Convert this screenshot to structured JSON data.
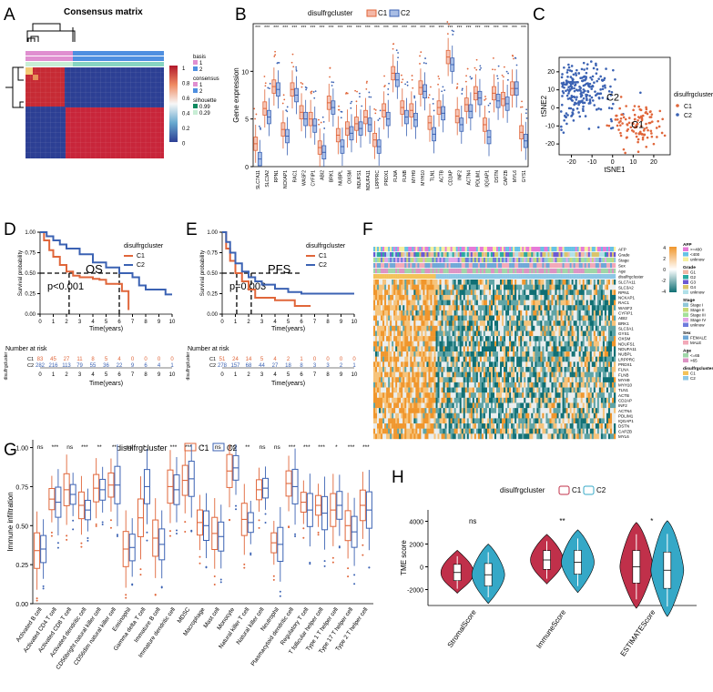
{
  "colors": {
    "c1": "#e0663a",
    "c2": "#3b62b3",
    "h1": "#c0304a",
    "h2": "#35a8c7",
    "orange": "#f0962c",
    "teal": "#0f6f74"
  },
  "panel_letters": [
    "A",
    "B",
    "C",
    "D",
    "E",
    "F",
    "G",
    "H"
  ],
  "panelA": {
    "title": "Consensus matrix",
    "legend": {
      "scale_ticks": [
        "1",
        "0.8",
        "0.6",
        "0.4",
        "0.2",
        "0"
      ],
      "basis_title": "basis",
      "basis_items": [
        "1",
        "2"
      ],
      "consensus_title": "consensus",
      "consensus_items": [
        "1",
        "2"
      ],
      "silhouette_title": "silhouette",
      "silhouette_items": [
        "0.99",
        "0.29"
      ]
    }
  },
  "shared": {
    "legend_title": "disulfrgcluster",
    "c1": "C1",
    "c2": "C2",
    "sig": "***"
  },
  "chart_data": [
    {
      "panel": "B",
      "type": "box",
      "ylabel": "Gene expression",
      "ylim": [
        0,
        15
      ],
      "yticks": [
        "0",
        "5",
        "10"
      ],
      "legend": "disulfrgcluster",
      "series": [
        {
          "name": "C1"
        },
        {
          "name": "C2"
        }
      ],
      "categories": [
        "SLC7A11",
        "SLC3A2",
        "RPN1",
        "NCKAP1",
        "RAC1",
        "WASF2",
        "CYFIP1",
        "ABI2",
        "BRK1",
        "NUBPL",
        "OXSM",
        "NDUFS1",
        "NDUFA11",
        "LRPPRC",
        "PRDX1",
        "FLNA",
        "FLNB",
        "MYH9",
        "MYH10",
        "TLN1",
        "ACTB",
        "CD2AP",
        "INF2",
        "ACTN4",
        "PDLIM1",
        "IQGAP1",
        "DSTN",
        "CAPZB",
        "MYL6",
        "GYS1"
      ],
      "c1_medians": [
        2.4,
        6.1,
        8.4,
        3.9,
        8.1,
        5.7,
        5.0,
        2.0,
        6.7,
        3.3,
        4.0,
        4.5,
        5.2,
        2.8,
        5.9,
        9.8,
        6.2,
        5.9,
        8.3,
        4.6,
        6.2,
        11.5,
        5.3,
        6.5,
        7.7,
        4.4,
        7.7,
        7.1,
        8.2,
        3.6
      ],
      "c2_medians": [
        0.8,
        5.2,
        8.1,
        3.2,
        7.5,
        5.0,
        4.3,
        1.5,
        6.2,
        2.1,
        3.5,
        4.0,
        4.4,
        2.1,
        5.0,
        9.1,
        5.2,
        4.9,
        7.9,
        3.4,
        5.6,
        10.7,
        4.4,
        5.8,
        7.2,
        3.1,
        6.9,
        6.6,
        8.2,
        2.7
      ],
      "sig": [
        "***",
        "***",
        "***",
        "***",
        "***",
        "***",
        "***",
        "***",
        "***",
        "***",
        "***",
        "***",
        "***",
        "***",
        "***",
        "***",
        "***",
        "***",
        "***",
        "***",
        "***",
        "***",
        "***",
        "***",
        "***",
        "***",
        "***",
        "***",
        "***",
        "***"
      ]
    },
    {
      "panel": "C",
      "type": "scatter",
      "xlabel": "tSNE1",
      "ylabel": "tSNE2",
      "xticks": [
        "-20",
        "-10",
        "0",
        "10",
        "20"
      ],
      "yticks": [
        "-20",
        "-10",
        "0",
        "10",
        "20"
      ],
      "xlim": [
        -26,
        28
      ],
      "ylim": [
        -26,
        28
      ],
      "legend": [
        "C1",
        "C2"
      ],
      "cluster_labels": [
        "C2",
        "C1"
      ]
    },
    {
      "panel": "D",
      "type": "line",
      "subtype": "kaplan-meier",
      "label": "OS",
      "pvalue": "p<0.001",
      "ylabel": "Survival probability",
      "xlabel": "Time(years)",
      "xticks": [
        "0",
        "1",
        "2",
        "3",
        "4",
        "5",
        "6",
        "7",
        "8",
        "9",
        "10"
      ],
      "yticks": [
        "0.00",
        "0.25",
        "0.50",
        "0.75",
        "1.00"
      ],
      "series": [
        {
          "name": "C1",
          "x": [
            0,
            0.3,
            0.7,
            1.0,
            1.5,
            2.0,
            2.5,
            3.0,
            3.5,
            4.0,
            4.5,
            5.0,
            5.5,
            6.2,
            6.6,
            6.7
          ],
          "y": [
            1,
            0.9,
            0.78,
            0.7,
            0.6,
            0.52,
            0.47,
            0.45,
            0.45,
            0.43,
            0.42,
            0.37,
            0.37,
            0.28,
            0.28,
            0.05
          ]
        },
        {
          "name": "C2",
          "x": [
            0,
            0.5,
            1.0,
            1.5,
            2.0,
            3.0,
            4.0,
            5.0,
            6.0,
            7.0,
            7.5,
            8.0,
            9.0,
            9.5,
            10.0
          ],
          "y": [
            1,
            0.95,
            0.9,
            0.85,
            0.8,
            0.73,
            0.63,
            0.57,
            0.5,
            0.45,
            0.35,
            0.3,
            0.3,
            0.24,
            0.24
          ]
        }
      ],
      "risk_title": "Number at risk",
      "risk_rows": [
        {
          "name": "C1",
          "values": [
            "83",
            "45",
            "27",
            "11",
            "8",
            "5",
            "4",
            "0",
            "0",
            "0",
            "0"
          ]
        },
        {
          "name": "C2",
          "values": [
            "282",
            "216",
            "113",
            "79",
            "55",
            "36",
            "22",
            "9",
            "6",
            "4",
            "1"
          ]
        }
      ]
    },
    {
      "panel": "E",
      "type": "line",
      "subtype": "kaplan-meier",
      "label": "PFS",
      "pvalue": "p=0.003",
      "ylabel": "Survival probability",
      "xlabel": "Time(years)",
      "xticks": [
        "0",
        "1",
        "2",
        "3",
        "4",
        "5",
        "6",
        "7",
        "8",
        "9",
        "10"
      ],
      "yticks": [
        "0.00",
        "0.25",
        "0.50",
        "0.75",
        "1.00"
      ],
      "series": [
        {
          "name": "C1",
          "x": [
            0,
            0.3,
            0.6,
            1.0,
            1.5,
            2.0,
            2.5,
            3.0,
            4.0,
            5.0,
            5.5,
            6.7
          ],
          "y": [
            1,
            0.8,
            0.65,
            0.5,
            0.4,
            0.3,
            0.2,
            0.2,
            0.17,
            0.17,
            0.1,
            0.1
          ]
        },
        {
          "name": "C2",
          "x": [
            0,
            0.3,
            0.6,
            1.0,
            1.5,
            2.0,
            2.5,
            3.0,
            4.0,
            5.0,
            6.0,
            7.0,
            8.0,
            9.0,
            10.0
          ],
          "y": [
            1,
            0.88,
            0.75,
            0.62,
            0.52,
            0.45,
            0.4,
            0.36,
            0.31,
            0.27,
            0.25,
            0.25,
            0.25,
            0.25,
            0.25
          ]
        }
      ],
      "risk_title": "Number at risk",
      "risk_rows": [
        {
          "name": "C1",
          "values": [
            "51",
            "24",
            "14",
            "5",
            "4",
            "2",
            "1",
            "0",
            "0",
            "0",
            "0"
          ]
        },
        {
          "name": "C2",
          "values": [
            "278",
            "157",
            "68",
            "44",
            "27",
            "18",
            "8",
            "3",
            "3",
            "2",
            "1"
          ]
        }
      ]
    },
    {
      "panel": "F",
      "type": "heatmap",
      "annotation_rows": [
        "AFP",
        "Grade",
        "Stage",
        "Sex",
        "Age",
        "disulfrgcluster"
      ],
      "genes": [
        "SLC7A11",
        "SLC3A2",
        "RPN1",
        "NCKAP1",
        "RAC1",
        "WASF2",
        "CYFIP1",
        "ABI2",
        "BRK1",
        "SLC3A1",
        "GYS1",
        "OXSM",
        "NDUFS1",
        "NDUFA11",
        "NUBPL",
        "LRPPRC",
        "PRDX1",
        "FLNA",
        "FLNB",
        "MYH9",
        "MYH10",
        "TLN1",
        "ACTB",
        "CD2AP",
        "INF2",
        "ACTN4",
        "PDLIM1",
        "IQGAP1",
        "DSTN",
        "CAPZB",
        "MYL6"
      ],
      "scale_ticks": [
        "4",
        "2",
        "0",
        "-2",
        "-4"
      ],
      "legend": [
        {
          "title": "AFP",
          "items": [
            ">=400",
            "<400",
            "unknow"
          ]
        },
        {
          "title": "Grade",
          "items": [
            "G1",
            "G2",
            "G3",
            "G4",
            "unknow"
          ]
        },
        {
          "title": "Stage",
          "items": [
            "Stage I",
            "Stage II",
            "Stage III",
            "Stage IV",
            "unknow"
          ]
        },
        {
          "title": "Sex",
          "items": [
            "FEMALE",
            "MALE"
          ]
        },
        {
          "title": "Age",
          "items": [
            "<=65",
            ">65"
          ]
        },
        {
          "title": "disulfrgcluster",
          "items": [
            "C1",
            "C2"
          ]
        }
      ]
    },
    {
      "panel": "G",
      "type": "box",
      "ylabel": "Immune infiltration",
      "ylim": [
        0,
        1.05
      ],
      "yticks": [
        "0.00",
        "0.25",
        "0.50",
        "0.75",
        "1.00"
      ],
      "legend": "disulfrgcluster",
      "series": [
        {
          "name": "C1"
        },
        {
          "name": "C2"
        }
      ],
      "categories": [
        "Activated B cell",
        "Activated CD4 T cell",
        "Activated CD8 T cell",
        "Activated dendritic cell",
        "CD56bright natural killer cell",
        "CD56dim natural killer cell",
        "Eosinophil",
        "Gamma delta T cell",
        "Immature B cell",
        "Immature dendritic cell",
        "MDSC",
        "Macrophage",
        "Mast cell",
        "Monocyte",
        "Natural killer T cell",
        "Natural killer cell",
        "Neutrophil",
        "Plasmacytoid dendritic cell",
        "Regulatory T cell",
        "T follicular helper cell",
        "Type 1 T helper cell",
        "Type 17 T helper cell",
        "Type 2 T helper cell"
      ],
      "sig": [
        "ns",
        "***",
        "ns",
        "***",
        "**",
        "**",
        "ns",
        "*",
        "*",
        "***",
        "***",
        "*",
        "ns",
        "ns",
        "**",
        "ns",
        "ns",
        "***",
        "***",
        "***",
        "*",
        "***",
        "***"
      ],
      "c1_medians": [
        0.34,
        0.67,
        0.73,
        0.63,
        0.74,
        0.76,
        0.35,
        0.55,
        0.42,
        0.75,
        0.79,
        0.52,
        0.45,
        0.85,
        0.54,
        0.73,
        0.39,
        0.77,
        0.65,
        0.63,
        0.6,
        0.5,
        0.63
      ],
      "c2_medians": [
        0.35,
        0.65,
        0.7,
        0.6,
        0.73,
        0.76,
        0.36,
        0.75,
        0.38,
        0.73,
        0.8,
        0.5,
        0.43,
        0.87,
        0.52,
        0.74,
        0.38,
        0.75,
        0.6,
        0.58,
        0.63,
        0.46,
        0.6
      ]
    },
    {
      "panel": "H",
      "type": "violin",
      "ylabel": "TME score",
      "ylim": [
        -3400,
        5000
      ],
      "yticks": [
        "4000",
        "2000",
        "0",
        "-2000"
      ],
      "legend": "disulfrgcluster",
      "series": [
        {
          "name": "C1"
        },
        {
          "name": "C2"
        }
      ],
      "categories": [
        "StromalScore",
        "ImmuneScore",
        "ESTIMATEScore"
      ],
      "sig": [
        "ns",
        "**",
        "*"
      ],
      "c1_medians": [
        -500,
        600,
        0
      ],
      "c2_medians": [
        -700,
        400,
        -300
      ]
    }
  ]
}
